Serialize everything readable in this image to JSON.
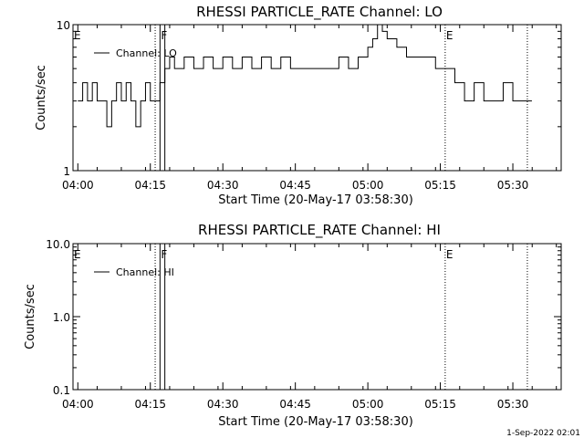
{
  "timestamp": "1-Sep-2022 02:01",
  "chart_data": [
    {
      "type": "line",
      "title": "RHESSI PARTICLE_RATE Channel: LO",
      "xlabel": "Start Time (20-May-17 03:58:30)",
      "ylabel": "Counts/sec",
      "y_scale": "log",
      "ylim": [
        1,
        10
      ],
      "xlim": [
        "03:59",
        "05:40"
      ],
      "x_ticks": [
        "04:00",
        "04:15",
        "04:30",
        "04:45",
        "05:00",
        "05:15",
        "05:30"
      ],
      "y_ticks": [
        "1",
        "10"
      ],
      "legend": {
        "position": "top-left",
        "entries": [
          "Channel: LO"
        ]
      },
      "flags": [
        {
          "label": "E",
          "time": "03:59",
          "style": "none"
        },
        {
          "label": "",
          "time": "04:16",
          "style": "dotted"
        },
        {
          "label": "F",
          "time": "04:17",
          "style": "solid"
        },
        {
          "label": "",
          "time": "04:18",
          "style": "solid"
        },
        {
          "label": "E",
          "time": "05:16",
          "style": "dotted"
        },
        {
          "label": "",
          "time": "05:33",
          "style": "dotted"
        }
      ],
      "series": [
        {
          "name": "Channel: LO",
          "x": [
            "04:00",
            "04:01",
            "04:02",
            "04:03",
            "04:04",
            "04:05",
            "04:06",
            "04:07",
            "04:08",
            "04:09",
            "04:10",
            "04:11",
            "04:12",
            "04:13",
            "04:14",
            "04:15",
            "04:16",
            "04:17",
            "04:18",
            "04:19",
            "04:20",
            "04:22",
            "04:24",
            "04:26",
            "04:28",
            "04:30",
            "04:32",
            "04:34",
            "04:36",
            "04:38",
            "04:40",
            "04:42",
            "04:44",
            "04:46",
            "04:48",
            "04:50",
            "04:52",
            "04:54",
            "04:56",
            "04:58",
            "05:00",
            "05:01",
            "05:02",
            "05:03",
            "05:04",
            "05:05",
            "05:06",
            "05:07",
            "05:08",
            "05:10",
            "05:12",
            "05:14",
            "05:16",
            "05:18",
            "05:20",
            "05:22",
            "05:24",
            "05:26",
            "05:28",
            "05:30",
            "05:31",
            "05:32",
            "05:33"
          ],
          "values": [
            3,
            4,
            3,
            4,
            3,
            3,
            2,
            3,
            4,
            3,
            4,
            3,
            2,
            3,
            4,
            3,
            3,
            4,
            5,
            6,
            5,
            6,
            5,
            6,
            5,
            6,
            5,
            6,
            5,
            6,
            5,
            6,
            5,
            5,
            5,
            5,
            5,
            6,
            5,
            6,
            7,
            8,
            10,
            9,
            8,
            8,
            7,
            7,
            6,
            6,
            6,
            5,
            5,
            4,
            3,
            4,
            3,
            3,
            4,
            3,
            3,
            3,
            3
          ]
        }
      ]
    },
    {
      "type": "line",
      "title": "RHESSI PARTICLE_RATE Channel: HI",
      "xlabel": "Start Time (20-May-17 03:58:30)",
      "ylabel": "Counts/sec",
      "y_scale": "log",
      "ylim": [
        0.1,
        10
      ],
      "xlim": [
        "03:59",
        "05:40"
      ],
      "x_ticks": [
        "04:00",
        "04:15",
        "04:30",
        "04:45",
        "05:00",
        "05:15",
        "05:30"
      ],
      "y_ticks": [
        "0.1",
        "1.0",
        "10.0"
      ],
      "legend": {
        "position": "top-left",
        "entries": [
          "Channel: HI"
        ]
      },
      "flags": [
        {
          "label": "E",
          "time": "03:59",
          "style": "none"
        },
        {
          "label": "",
          "time": "04:16",
          "style": "dotted"
        },
        {
          "label": "F",
          "time": "04:17",
          "style": "solid"
        },
        {
          "label": "",
          "time": "04:18",
          "style": "solid"
        },
        {
          "label": "E",
          "time": "05:16",
          "style": "dotted"
        },
        {
          "label": "",
          "time": "05:33",
          "style": "dotted"
        }
      ],
      "series": [
        {
          "name": "Channel: HI",
          "x": [],
          "values": []
        }
      ]
    }
  ]
}
